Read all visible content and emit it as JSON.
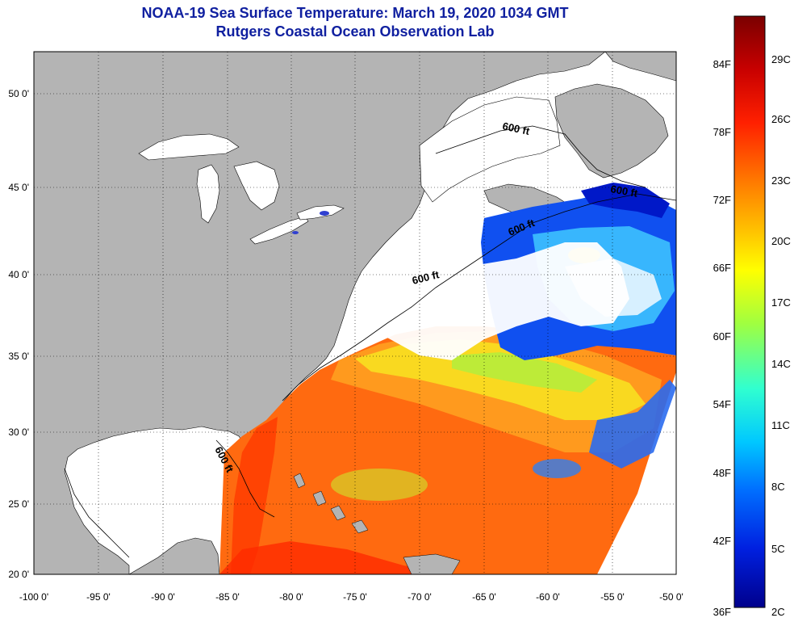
{
  "header": {
    "title": "NOAA-19 Sea Surface Temperature:  March 19, 2020 1034 GMT",
    "subtitle": "Rutgers Coastal Ocean Observation Lab"
  },
  "map": {
    "lat_labels": [
      "50 0'",
      "45 0'",
      "40 0'",
      "35 0'",
      "30 0'",
      "25 0'",
      "20 0'"
    ],
    "lon_labels": [
      "-100 0'",
      "-95 0'",
      "-90 0'",
      "-85 0'",
      "-80 0'",
      "-75 0'",
      "-70 0'",
      "-65 0'",
      "-60 0'",
      "-55 0'",
      "-50 0'"
    ],
    "contour_label": "600 ft",
    "colors": {
      "land": "#b4b4b4",
      "cloud": "#ffffff",
      "coast": "#000000"
    }
  },
  "colorbar": {
    "fahrenheit": [
      "84F",
      "78F",
      "72F",
      "66F",
      "60F",
      "54F",
      "48F",
      "42F",
      "36F"
    ],
    "celsius": [
      "29C",
      "26C",
      "23C",
      "20C",
      "17C",
      "14C",
      "11C",
      "8C",
      "5C",
      "2C"
    ],
    "stops": [
      "#7a0000",
      "#c80000",
      "#ff2000",
      "#ff7a00",
      "#ffc800",
      "#ffff00",
      "#a0ff40",
      "#30ffd0",
      "#00c8ff",
      "#0070ff",
      "#0020e0",
      "#00008c"
    ]
  }
}
